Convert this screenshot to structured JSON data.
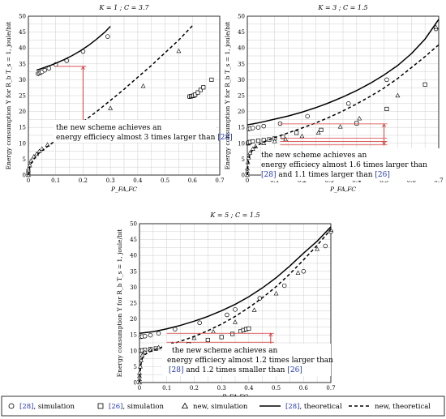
{
  "colors": {
    "citation": "#2233aa",
    "bracket": "#d43a3a",
    "grid": "#cfcfcf"
  },
  "legend": {
    "items": [
      {
        "ref": "[28]",
        "text": ", simulation",
        "marker": "circle"
      },
      {
        "ref": "[26]",
        "text": ", simulation",
        "marker": "square"
      },
      {
        "ref": "",
        "text": "new, simulation",
        "marker": "triangle"
      },
      {
        "ref": "[28]",
        "text": ", theoretical",
        "marker": "solid-line"
      },
      {
        "ref": "",
        "text": "new, theoretical",
        "marker": "dashed-line"
      }
    ]
  },
  "chart_data": [
    {
      "type": "line",
      "title": "K = 1 ; C = 3.7",
      "xlabel": "P_FA,FC",
      "ylabel": "Energy consumption Υ for R_b T_s = 1, joule/bit",
      "xlim": [
        0,
        0.7
      ],
      "ylim": [
        0,
        50
      ],
      "xticks": [
        "0",
        "0.1",
        "0.2",
        "0.3",
        "0.4",
        "0.5",
        "0.6",
        "0.7"
      ],
      "yticks": [
        "0",
        "5",
        "10",
        "15",
        "20",
        "25",
        "30",
        "35",
        "40",
        "45",
        "50"
      ],
      "grid": true,
      "series": [
        {
          "name": "[28], simulation",
          "style": "circle",
          "x": [
            0.035,
            0.04,
            0.045,
            0.05,
            0.06,
            0.075,
            0.1,
            0.14,
            0.2,
            0.29,
            0.59,
            0.595,
            0.6,
            0.605,
            0.61
          ],
          "y": [
            31.9,
            32.1,
            32.3,
            32.5,
            33.0,
            33.6,
            34.8,
            36.0,
            38.9,
            43.6,
            24.7,
            24.8,
            24.9,
            25.0,
            25.2
          ]
        },
        {
          "name": "[26], simulation",
          "style": "square",
          "x": [
            0.59,
            0.595,
            0.6,
            0.605,
            0.61,
            0.62,
            0.63,
            0.64,
            0.67
          ],
          "y": [
            24.7,
            24.8,
            24.9,
            25.0,
            25.3,
            26.0,
            26.8,
            27.6,
            30.0
          ]
        },
        {
          "name": "new, simulation",
          "style": "triangle",
          "x": [
            0,
            0,
            0,
            0,
            0,
            0.005,
            0.01,
            0.02,
            0.03,
            0.04,
            0.05,
            0.07,
            0.1,
            0.15,
            0.21,
            0.3,
            0.42,
            0.55
          ],
          "y": [
            0,
            0.5,
            1,
            1.5,
            2,
            3,
            4.5,
            5.8,
            6.6,
            7.5,
            8.2,
            9.5,
            11.5,
            13.5,
            16.5,
            21.0,
            28.0,
            39.0
          ]
        },
        {
          "name": "[28], theoretical",
          "style": "solid",
          "x": [
            0.03,
            0.05,
            0.08,
            0.1,
            0.13,
            0.16,
            0.19,
            0.22,
            0.25,
            0.28,
            0.3
          ],
          "y": [
            33.0,
            33.6,
            34.5,
            35.2,
            36.3,
            37.6,
            39.1,
            40.8,
            42.8,
            45.0,
            46.8
          ]
        },
        {
          "name": "new, theoretical",
          "style": "dashed",
          "x": [
            0,
            0.005,
            0.01,
            0.02,
            0.04,
            0.07,
            0.1,
            0.15,
            0.2,
            0.25,
            0.3,
            0.35,
            0.4,
            0.45,
            0.5,
            0.55,
            0.6
          ],
          "y": [
            0,
            2.5,
            3.6,
            5.0,
            7.0,
            9.0,
            10.9,
            13.8,
            16.8,
            20.0,
            23.5,
            27.0,
            30.8,
            34.5,
            38.5,
            42.5,
            47.0
          ]
        }
      ],
      "annotation": {
        "text": "the new scheme achieves an energy efficiecy almost 3 times larger than",
        "ref": "[28]"
      },
      "bracket": {
        "x": 0.2,
        "y": [
          11.2,
          34.2
        ],
        "x_from": 0.1
      }
    },
    {
      "type": "line",
      "title": "K = 3 ; C = 1.5",
      "xlabel": "P_FA,FC",
      "ylabel": "Energy consumption Υ for R_b T_s = 1, joule/bit",
      "xlim": [
        0,
        0.7
      ],
      "ylim": [
        0,
        50
      ],
      "xticks": [
        "0",
        "0.1",
        "0.2",
        "0.3",
        "0.4",
        "0.5",
        "0.6",
        "0.7"
      ],
      "yticks": [
        "0",
        "5",
        "10",
        "15",
        "20",
        "25",
        "30",
        "35",
        "40",
        "45",
        "50"
      ],
      "grid": true,
      "series": [
        {
          "name": "[28], simulation",
          "style": "circle",
          "x": [
            0.005,
            0.01,
            0.02,
            0.04,
            0.06,
            0.12,
            0.22,
            0.37,
            0.51,
            0.69
          ],
          "y": [
            14.5,
            14.6,
            14.8,
            15.0,
            15.4,
            16.2,
            18.5,
            22.5,
            30.0,
            46.0
          ]
        },
        {
          "name": "[26], simulation",
          "style": "square",
          "x": [
            0.003,
            0.005,
            0.01,
            0.02,
            0.04,
            0.06,
            0.08,
            0.1,
            0.13,
            0.18,
            0.27,
            0.4,
            0.51,
            0.65
          ],
          "y": [
            10.0,
            10.2,
            10.4,
            10.6,
            10.8,
            11.0,
            11.2,
            11.5,
            12.0,
            13.3,
            14.2,
            16.3,
            20.8,
            28.5
          ]
        },
        {
          "name": "new, simulation",
          "style": "triangle",
          "x": [
            0,
            0,
            0,
            0.002,
            0.005,
            0.01,
            0.02,
            0.03,
            0.06,
            0.1,
            0.14,
            0.2,
            0.26,
            0.34,
            0.41,
            0.55,
            0.69
          ],
          "y": [
            0,
            1,
            2,
            4,
            5.5,
            7,
            8.2,
            9,
            10,
            10.6,
            11.2,
            12.2,
            13.3,
            15.2,
            17.8,
            25,
            46.5
          ]
        },
        {
          "name": "[28], theoretical",
          "style": "solid",
          "x": [
            0,
            0.02,
            0.05,
            0.1,
            0.15,
            0.2,
            0.25,
            0.3,
            0.35,
            0.4,
            0.45,
            0.5,
            0.55,
            0.6,
            0.65,
            0.7
          ],
          "y": [
            15.8,
            16.1,
            16.6,
            17.6,
            18.6,
            19.8,
            21.2,
            22.8,
            24.6,
            26.6,
            28.9,
            31.5,
            34.5,
            38.2,
            42.8,
            49.0
          ]
        },
        {
          "name": "new, theoretical",
          "style": "dashed",
          "x": [
            0,
            0.002,
            0.005,
            0.01,
            0.02,
            0.04,
            0.07,
            0.1,
            0.15,
            0.2,
            0.25,
            0.3,
            0.35,
            0.4,
            0.45,
            0.5,
            0.55,
            0.6,
            0.65,
            0.7
          ],
          "y": [
            0,
            3,
            5,
            6.5,
            8,
            9.5,
            10.8,
            11.8,
            13.3,
            14.8,
            16.4,
            18.2,
            20.2,
            22.4,
            24.8,
            27.4,
            30.4,
            33.8,
            37.3,
            41.0
          ]
        }
      ],
      "annotation": {
        "text": "the new scheme achieves an energy efficiecy almost 1.6 times larger than",
        "ref1": "[28]",
        "mid": " and 1.1 times larger than ",
        "ref2": "[26]"
      },
      "bracket": {
        "x": 0.5,
        "y": [
          9.5,
          16.1
        ],
        "ticks": [
          9.5,
          10.6,
          11.6,
          16.1
        ],
        "x_from": 0.12
      }
    },
    {
      "type": "line",
      "title": "K = 5 ; C = 1.5",
      "xlabel": "P_FA,FC",
      "ylabel": "Energy consumption Υ for R_b T_s = 1, joule/bit",
      "xlim": [
        0,
        0.7
      ],
      "ylim": [
        0,
        50
      ],
      "xticks": [
        "0",
        "0.1",
        "0.2",
        "0.3",
        "0.4",
        "0.5",
        "0.6",
        "0.7"
      ],
      "yticks": [
        "0",
        "5",
        "10",
        "15",
        "20",
        "25",
        "30",
        "35",
        "40",
        "45",
        "50"
      ],
      "grid": true,
      "series": [
        {
          "name": "[28], simulation",
          "style": "circle",
          "x": [
            0.005,
            0.01,
            0.02,
            0.04,
            0.07,
            0.13,
            0.22,
            0.32,
            0.35,
            0.44,
            0.53,
            0.6,
            0.68,
            0.7
          ],
          "y": [
            14.4,
            14.5,
            14.6,
            14.9,
            15.5,
            16.8,
            18.8,
            21.3,
            23.0,
            26.5,
            30.5,
            35.0,
            43.0,
            47.5
          ]
        },
        {
          "name": "[26], simulation",
          "style": "square",
          "x": [
            0.005,
            0.01,
            0.02,
            0.04,
            0.06,
            0.09,
            0.13,
            0.18,
            0.25,
            0.3,
            0.34,
            0.37,
            0.38,
            0.39,
            0.4
          ],
          "y": [
            10,
            10.1,
            10.3,
            10.5,
            10.7,
            11,
            11.5,
            12.0,
            13.4,
            14.3,
            15.3,
            16.1,
            16.5,
            16.8,
            17.0
          ]
        },
        {
          "name": "new, simulation",
          "style": "triangle",
          "x": [
            0,
            0,
            0,
            0,
            0.003,
            0.006,
            0.01,
            0.02,
            0.04,
            0.07,
            0.12,
            0.2,
            0.27,
            0.35,
            0.42,
            0.5,
            0.58,
            0.65,
            0.7
          ],
          "y": [
            0,
            1,
            2,
            3,
            5,
            7,
            8.5,
            9.5,
            10.2,
            11,
            12.1,
            14,
            16,
            19,
            22.8,
            28,
            34.5,
            42,
            48
          ]
        },
        {
          "name": "[28], theoretical",
          "style": "solid",
          "x": [
            0,
            0.05,
            0.1,
            0.15,
            0.2,
            0.25,
            0.3,
            0.35,
            0.4,
            0.45,
            0.5,
            0.55,
            0.6,
            0.65,
            0.7
          ],
          "y": [
            15.5,
            16.0,
            16.9,
            18.0,
            19.3,
            20.8,
            22.6,
            24.6,
            27.0,
            29.8,
            33.0,
            36.7,
            40.7,
            44.5,
            49.0
          ]
        },
        {
          "name": "new, theoretical",
          "style": "dashed",
          "x": [
            0,
            0.003,
            0.006,
            0.01,
            0.02,
            0.04,
            0.07,
            0.1,
            0.15,
            0.2,
            0.25,
            0.3,
            0.35,
            0.4,
            0.45,
            0.5,
            0.55,
            0.6,
            0.65,
            0.7
          ],
          "y": [
            0,
            4,
            6,
            7.5,
            8.8,
            9.8,
            10.8,
            11.6,
            13,
            14.5,
            16.3,
            18.4,
            20.8,
            23.6,
            26.7,
            30.2,
            34.2,
            38.6,
            43.2,
            48.2
          ]
        }
      ],
      "annotation": {
        "text": "the new scheme achieves an energy efficiecy almost 1.2 times larger than",
        "ref1": "[28]",
        "mid": " and 1.2 times smaller than ",
        "ref2": "[26]"
      },
      "bracket": {
        "x": 0.48,
        "y": [
          10.8,
          15.5
        ],
        "ticks": [
          10.8,
          12.7,
          15.5
        ],
        "x_from": 0.1
      }
    }
  ]
}
